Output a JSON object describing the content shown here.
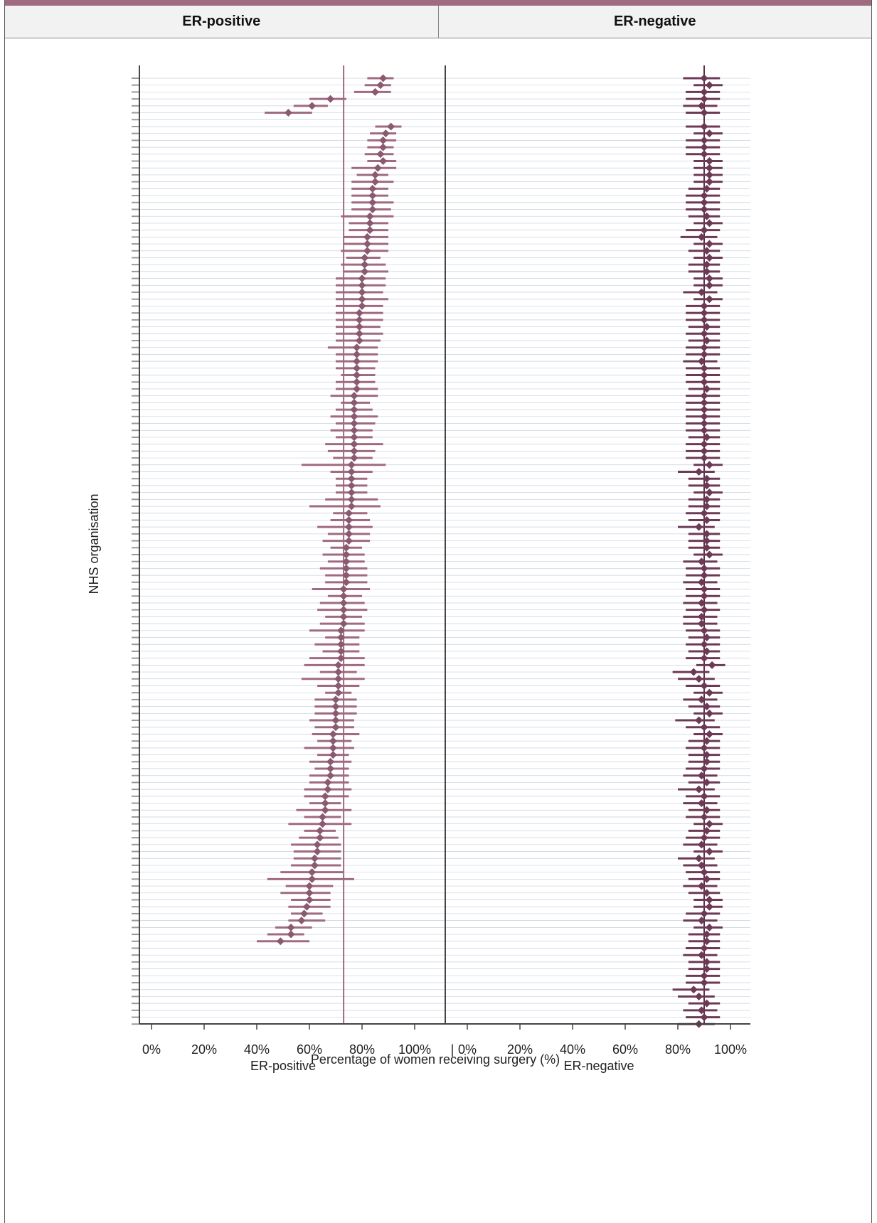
{
  "header": {
    "col1": "ER-positive",
    "col2": "ER-negative"
  },
  "chart_data": {
    "type": "scatter",
    "ylabel": "NHS organisation",
    "xlabel": "Percentage of women receiving surgery (%)",
    "colors": {
      "point": "#8a5a70",
      "bar": "#a06a80",
      "ref": "#a06a80",
      "axis": "#444",
      "grid": "#c8d0dc"
    },
    "panels": [
      {
        "name": "ER-positive",
        "xlim": [
          0,
          100
        ],
        "ticks": [
          "0%",
          "20%",
          "40%",
          "60%",
          "80%",
          "100%"
        ],
        "reference_line": 73,
        "estimates": [
          88,
          87,
          85,
          68,
          61,
          52,
          null,
          91,
          89,
          88,
          88,
          87,
          88,
          86,
          85,
          85,
          84,
          84,
          84,
          84,
          83,
          83,
          83,
          82,
          82,
          82,
          81,
          81,
          81,
          80,
          80,
          80,
          80,
          80,
          79,
          79,
          79,
          79,
          79,
          78,
          78,
          78,
          78,
          78,
          78,
          78,
          77,
          77,
          77,
          77,
          77,
          77,
          77,
          77,
          77,
          77,
          76,
          76,
          76,
          76,
          76,
          76,
          76,
          75,
          75,
          75,
          75,
          75,
          74,
          74,
          74,
          74,
          74,
          74,
          73,
          73,
          73,
          73,
          73,
          73,
          72,
          72,
          72,
          72,
          72,
          71,
          71,
          71,
          71,
          71,
          70,
          70,
          70,
          70,
          70,
          69,
          69,
          69,
          69,
          68,
          68,
          68,
          67,
          67,
          66,
          66,
          66,
          65,
          65,
          64,
          64,
          63,
          63,
          62,
          62,
          61,
          61,
          60,
          60,
          60,
          59,
          58,
          57,
          53,
          53,
          49
        ],
        "lower": [
          82,
          81,
          77,
          60,
          54,
          43,
          null,
          85,
          83,
          82,
          82,
          81,
          82,
          76,
          78,
          76,
          76,
          76,
          76,
          76,
          72,
          75,
          75,
          73,
          73,
          72,
          74,
          72,
          73,
          70,
          70,
          70,
          70,
          70,
          70,
          70,
          70,
          70,
          70,
          67,
          70,
          70,
          70,
          72,
          70,
          70,
          68,
          72,
          70,
          68,
          70,
          68,
          70,
          66,
          67,
          69,
          57,
          68,
          70,
          70,
          70,
          66,
          60,
          69,
          68,
          63,
          67,
          65,
          68,
          65,
          67,
          64,
          66,
          66,
          61,
          67,
          64,
          63,
          66,
          64,
          60,
          66,
          62,
          65,
          60,
          58,
          64,
          57,
          63,
          66,
          62,
          62,
          62,
          60,
          62,
          61,
          63,
          58,
          63,
          60,
          62,
          60,
          60,
          58,
          58,
          60,
          55,
          58,
          52,
          58,
          56,
          53,
          54,
          54,
          53,
          49,
          44,
          51,
          49,
          53,
          52,
          53,
          52,
          47,
          44,
          40
        ],
        "upper": [
          92,
          91,
          91,
          74,
          67,
          61,
          null,
          95,
          93,
          93,
          92,
          92,
          93,
          93,
          90,
          92,
          90,
          90,
          92,
          91,
          92,
          90,
          90,
          90,
          90,
          90,
          87,
          89,
          90,
          89,
          89,
          88,
          90,
          88,
          88,
          88,
          87,
          88,
          87,
          86,
          86,
          86,
          85,
          85,
          85,
          86,
          86,
          83,
          84,
          86,
          85,
          84,
          84,
          88,
          85,
          84,
          89,
          84,
          82,
          82,
          82,
          86,
          87,
          82,
          83,
          84,
          83,
          83,
          80,
          81,
          81,
          82,
          82,
          82,
          83,
          80,
          81,
          82,
          80,
          81,
          81,
          79,
          79,
          79,
          81,
          81,
          78,
          81,
          79,
          76,
          78,
          78,
          78,
          77,
          77,
          79,
          76,
          77,
          75,
          76,
          75,
          75,
          75,
          76,
          75,
          72,
          76,
          72,
          76,
          70,
          71,
          72,
          72,
          72,
          72,
          73,
          77,
          69,
          68,
          68,
          68,
          65,
          66,
          61,
          58,
          60
        ]
      },
      {
        "name": "ER-negative",
        "xlim": [
          0,
          100
        ],
        "ticks": [
          "0%",
          "20%",
          "40%",
          "60%",
          "80%",
          "100%"
        ],
        "reference_line": 90,
        "estimates": [
          90,
          92,
          90,
          90,
          89,
          90,
          null,
          90,
          92,
          90,
          90,
          90,
          92,
          92,
          92,
          92,
          91,
          90,
          90,
          90,
          91,
          92,
          90,
          89,
          92,
          91,
          92,
          91,
          91,
          92,
          92,
          89,
          92,
          90,
          90,
          90,
          91,
          90,
          91,
          90,
          90,
          89,
          90,
          90,
          90,
          91,
          90,
          90,
          90,
          90,
          90,
          90,
          91,
          90,
          90,
          90,
          92,
          88,
          91,
          91,
          92,
          91,
          91,
          90,
          91,
          88,
          91,
          91,
          91,
          92,
          89,
          90,
          90,
          89,
          90,
          90,
          89,
          90,
          89,
          89,
          90,
          91,
          90,
          91,
          90,
          93,
          86,
          88,
          90,
          92,
          89,
          91,
          92,
          88,
          90,
          92,
          91,
          90,
          91,
          91,
          90,
          89,
          91,
          88,
          90,
          89,
          91,
          90,
          92,
          91,
          90,
          89,
          92,
          88,
          89,
          90,
          91,
          89,
          91,
          92,
          92,
          90,
          89,
          92,
          91,
          91,
          90,
          89,
          91,
          91,
          90,
          90,
          86,
          88,
          91,
          89,
          90,
          88
        ],
        "lower": [
          82,
          86,
          83,
          83,
          82,
          83,
          null,
          83,
          86,
          83,
          83,
          83,
          86,
          86,
          86,
          86,
          84,
          83,
          83,
          83,
          84,
          86,
          83,
          81,
          86,
          84,
          86,
          84,
          84,
          86,
          86,
          82,
          86,
          83,
          83,
          83,
          84,
          83,
          84,
          83,
          83,
          82,
          83,
          83,
          83,
          84,
          83,
          83,
          83,
          83,
          83,
          83,
          84,
          83,
          83,
          83,
          86,
          80,
          84,
          84,
          86,
          84,
          84,
          83,
          84,
          80,
          84,
          84,
          84,
          86,
          82,
          83,
          83,
          82,
          83,
          83,
          82,
          83,
          82,
          82,
          83,
          84,
          83,
          84,
          83,
          87,
          78,
          80,
          83,
          86,
          82,
          84,
          86,
          79,
          83,
          86,
          84,
          83,
          84,
          84,
          83,
          82,
          84,
          80,
          83,
          82,
          84,
          83,
          86,
          84,
          83,
          82,
          86,
          80,
          82,
          83,
          84,
          82,
          84,
          86,
          86,
          83,
          82,
          86,
          84,
          84,
          83,
          82,
          84,
          84,
          83,
          83,
          78,
          80,
          84,
          82,
          83,
          80
        ],
        "upper": [
          96,
          97,
          96,
          96,
          95,
          96,
          null,
          96,
          97,
          96,
          96,
          96,
          97,
          97,
          97,
          97,
          96,
          96,
          96,
          96,
          96,
          97,
          96,
          95,
          97,
          96,
          97,
          96,
          96,
          97,
          97,
          95,
          97,
          96,
          96,
          96,
          96,
          96,
          96,
          96,
          96,
          95,
          96,
          96,
          96,
          96,
          96,
          96,
          96,
          96,
          96,
          96,
          96,
          96,
          96,
          96,
          97,
          94,
          96,
          96,
          97,
          96,
          96,
          96,
          96,
          94,
          96,
          96,
          96,
          97,
          95,
          96,
          96,
          95,
          96,
          96,
          95,
          96,
          95,
          95,
          96,
          96,
          96,
          96,
          96,
          98,
          92,
          94,
          96,
          97,
          95,
          96,
          97,
          94,
          96,
          97,
          96,
          96,
          96,
          96,
          96,
          95,
          96,
          94,
          96,
          95,
          96,
          96,
          97,
          96,
          96,
          95,
          97,
          94,
          95,
          96,
          96,
          95,
          96,
          97,
          97,
          96,
          95,
          97,
          96,
          96,
          96,
          95,
          96,
          96,
          96,
          96,
          92,
          94,
          96,
          95,
          96,
          94
        ]
      }
    ]
  }
}
